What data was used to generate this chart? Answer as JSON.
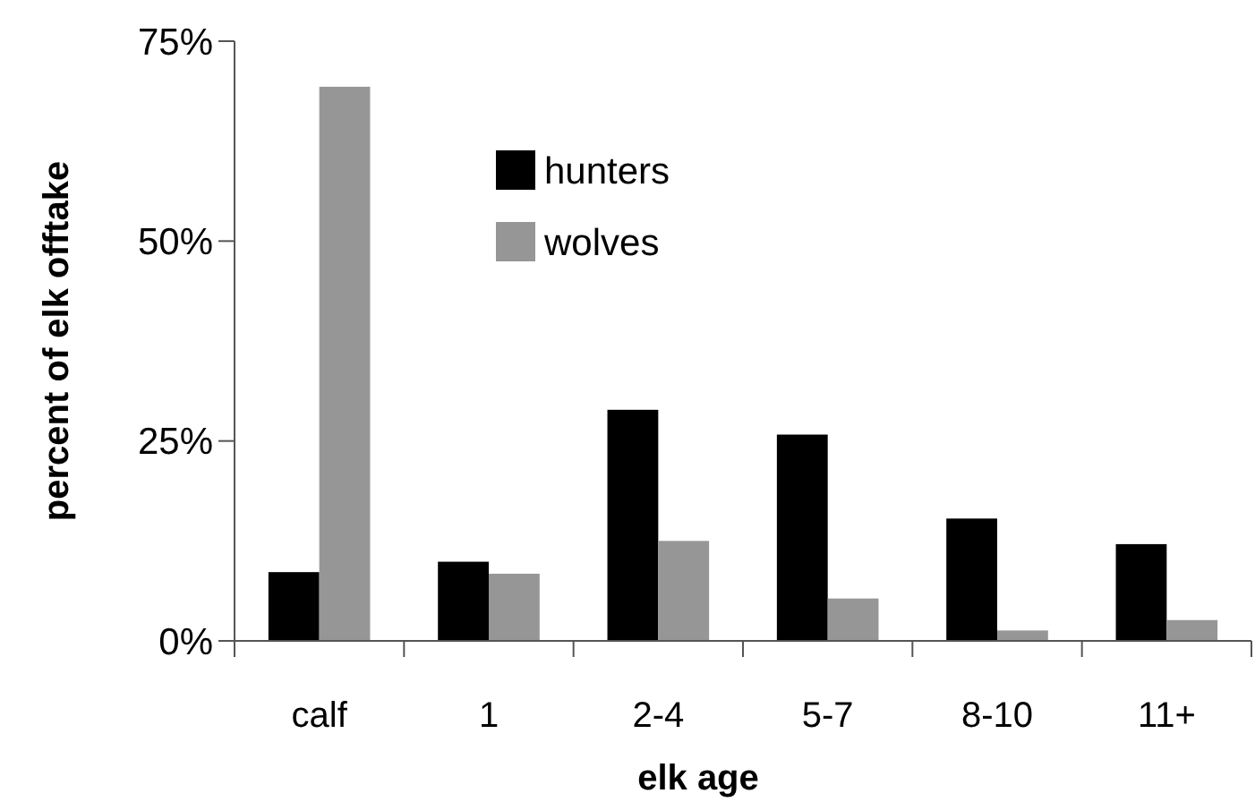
{
  "chart_data": {
    "type": "bar",
    "xlabel": "elk age",
    "ylabel": "percent of elk offtake",
    "categories": [
      "calf",
      "1",
      "2-4",
      "5-7",
      "8-10",
      "11+"
    ],
    "series": [
      {
        "name": "hunters",
        "color": "#000000",
        "values": [
          8.6,
          9.9,
          28.9,
          25.8,
          15.3,
          12.1
        ]
      },
      {
        "name": "wolves",
        "color": "#969696",
        "values": [
          69.3,
          8.4,
          12.5,
          5.3,
          1.3,
          2.6
        ]
      }
    ],
    "ylim": [
      0,
      75
    ],
    "yticks": [
      {
        "value": 0,
        "label": "0%"
      },
      {
        "value": 25,
        "label": "25%"
      },
      {
        "value": 50,
        "label": "50%"
      },
      {
        "value": 75,
        "label": "75%"
      }
    ],
    "legend": "top",
    "grid": false
  }
}
